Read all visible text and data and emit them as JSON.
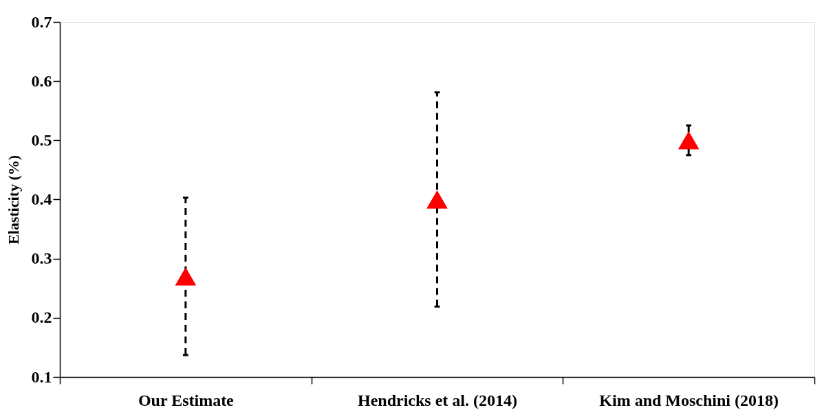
{
  "chart_data": {
    "type": "scatter",
    "ylabel": "Elasticity (%)",
    "categories": [
      "Our Estimate",
      "Hendricks et al. (2014)",
      "Kim and Moschini (2018)"
    ],
    "series": [
      {
        "color": "#ff0000",
        "values": [
          0.27,
          0.4,
          0.5
        ],
        "errors": [
          [
            0.137,
            0.403
          ],
          [
            0.219,
            0.581
          ],
          [
            0.475,
            0.525
          ]
        ]
      }
    ],
    "ylim": [
      0.1,
      0.7
    ],
    "yticks": [
      0.1,
      0.2,
      0.3,
      0.4,
      0.5,
      0.6,
      0.7
    ],
    "marker": "triangle",
    "grid": false
  }
}
